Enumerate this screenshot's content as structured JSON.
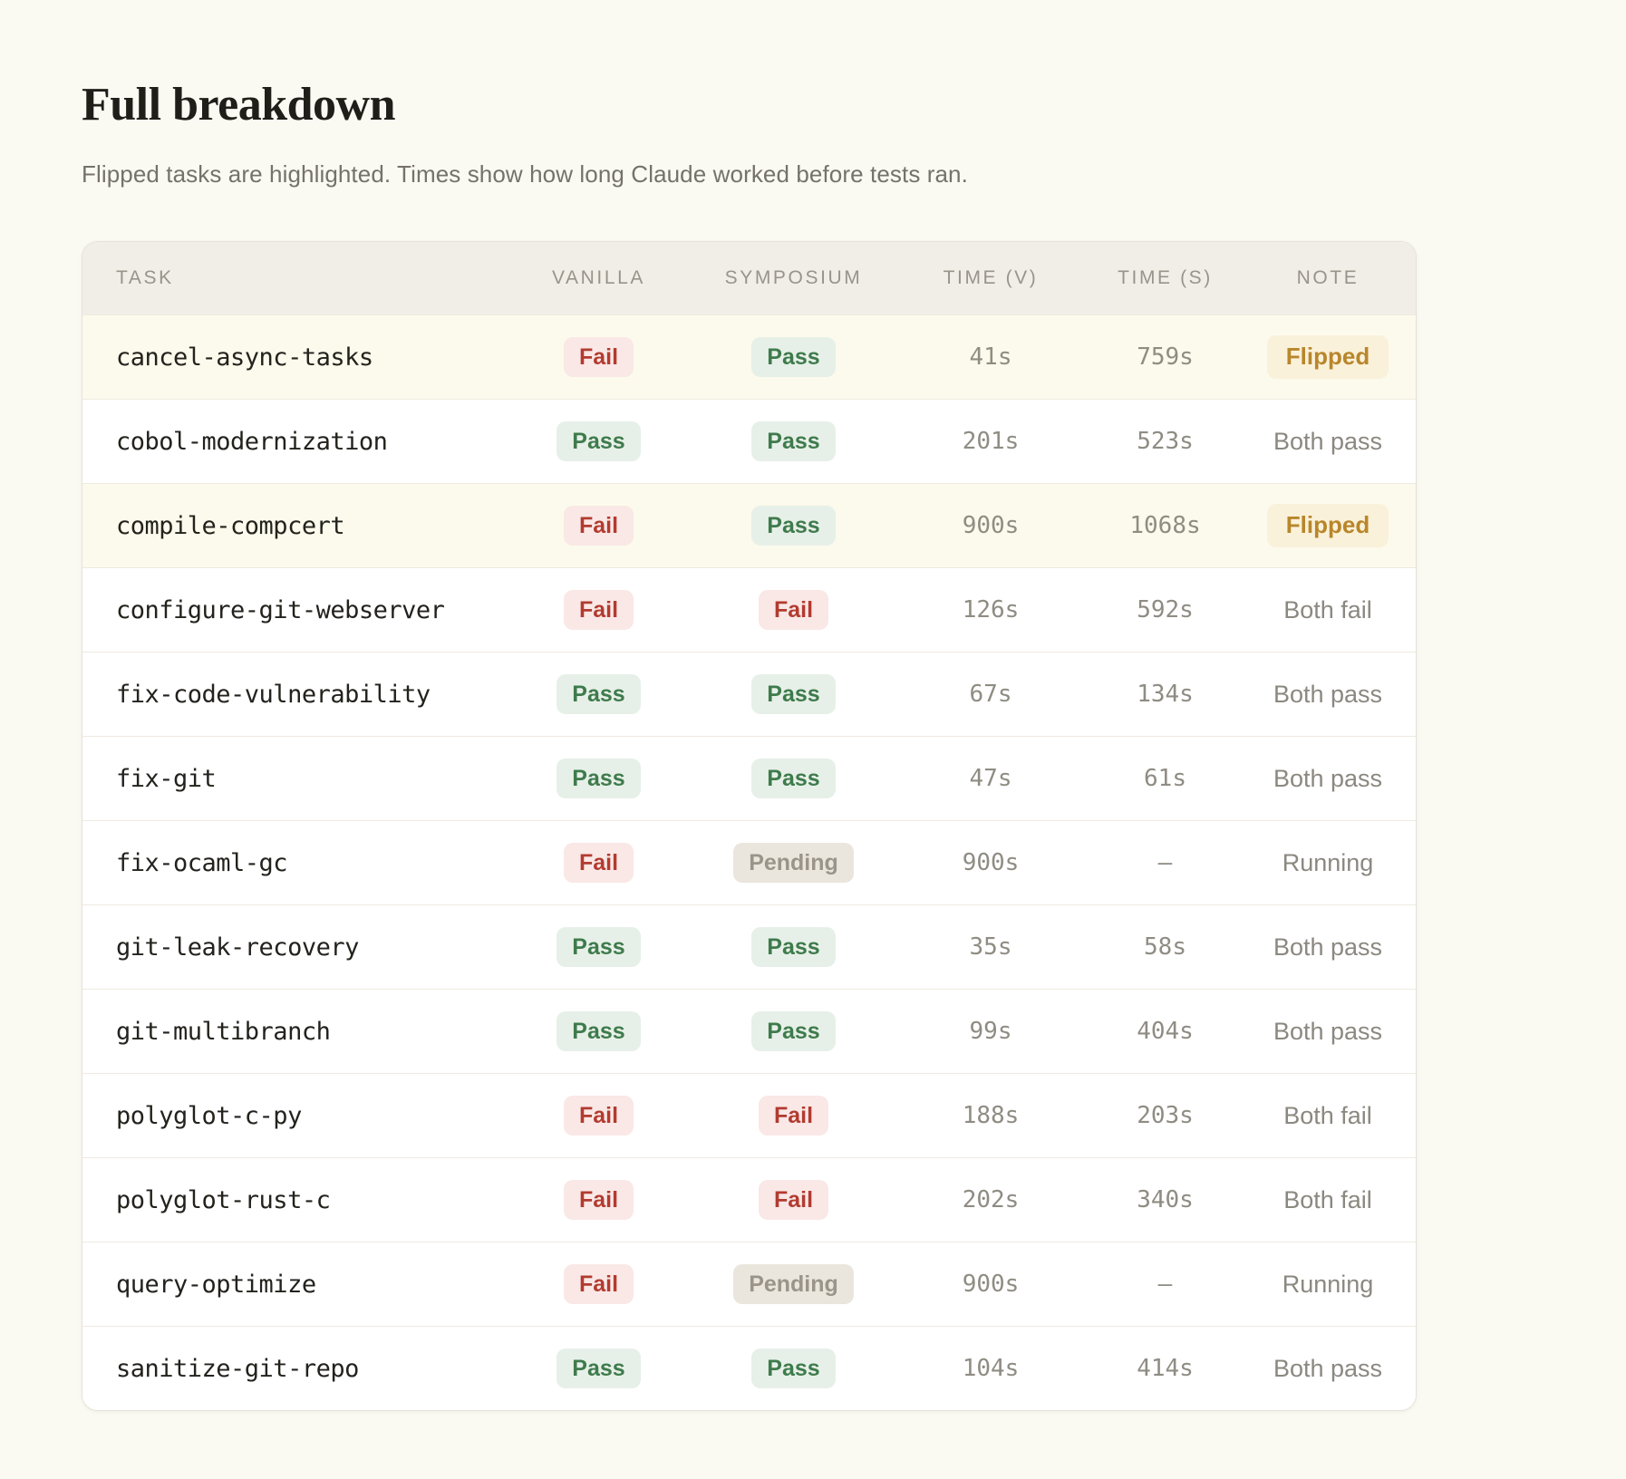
{
  "page": {
    "title": "Full breakdown",
    "subtitle": "Flipped tasks are highlighted. Times show how long Claude worked before tests ran."
  },
  "chart_data": {
    "type": "table",
    "title": "Full breakdown",
    "columns": [
      "TASK",
      "VANILLA",
      "SYMPOSIUM",
      "TIME (V)",
      "TIME (S)",
      "NOTE"
    ],
    "rows": [
      {
        "task": "cancel-async-tasks",
        "vanilla": "Fail",
        "symposium": "Pass",
        "time_v": "41s",
        "time_s": "759s",
        "note": "Flipped",
        "note_style": "flipped-badge",
        "highlighted": true
      },
      {
        "task": "cobol-modernization",
        "vanilla": "Pass",
        "symposium": "Pass",
        "time_v": "201s",
        "time_s": "523s",
        "note": "Both pass",
        "note_style": "plain",
        "highlighted": false
      },
      {
        "task": "compile-compcert",
        "vanilla": "Fail",
        "symposium": "Pass",
        "time_v": "900s",
        "time_s": "1068s",
        "note": "Flipped",
        "note_style": "flipped-badge",
        "highlighted": true
      },
      {
        "task": "configure-git-webserver",
        "vanilla": "Fail",
        "symposium": "Fail",
        "time_v": "126s",
        "time_s": "592s",
        "note": "Both fail",
        "note_style": "plain",
        "highlighted": false
      },
      {
        "task": "fix-code-vulnerability",
        "vanilla": "Pass",
        "symposium": "Pass",
        "time_v": "67s",
        "time_s": "134s",
        "note": "Both pass",
        "note_style": "plain",
        "highlighted": false
      },
      {
        "task": "fix-git",
        "vanilla": "Pass",
        "symposium": "Pass",
        "time_v": "47s",
        "time_s": "61s",
        "note": "Both pass",
        "note_style": "plain",
        "highlighted": false
      },
      {
        "task": "fix-ocaml-gc",
        "vanilla": "Fail",
        "symposium": "Pending",
        "time_v": "900s",
        "time_s": "–",
        "note": "Running",
        "note_style": "plain",
        "highlighted": false
      },
      {
        "task": "git-leak-recovery",
        "vanilla": "Pass",
        "symposium": "Pass",
        "time_v": "35s",
        "time_s": "58s",
        "note": "Both pass",
        "note_style": "plain",
        "highlighted": false
      },
      {
        "task": "git-multibranch",
        "vanilla": "Pass",
        "symposium": "Pass",
        "time_v": "99s",
        "time_s": "404s",
        "note": "Both pass",
        "note_style": "plain",
        "highlighted": false
      },
      {
        "task": "polyglot-c-py",
        "vanilla": "Fail",
        "symposium": "Fail",
        "time_v": "188s",
        "time_s": "203s",
        "note": "Both fail",
        "note_style": "plain",
        "highlighted": false
      },
      {
        "task": "polyglot-rust-c",
        "vanilla": "Fail",
        "symposium": "Fail",
        "time_v": "202s",
        "time_s": "340s",
        "note": "Both fail",
        "note_style": "plain",
        "highlighted": false
      },
      {
        "task": "query-optimize",
        "vanilla": "Fail",
        "symposium": "Pending",
        "time_v": "900s",
        "time_s": "–",
        "note": "Running",
        "note_style": "plain",
        "highlighted": false
      },
      {
        "task": "sanitize-git-repo",
        "vanilla": "Pass",
        "symposium": "Pass",
        "time_v": "104s",
        "time_s": "414s",
        "note": "Both pass",
        "note_style": "plain",
        "highlighted": false
      }
    ]
  },
  "colors": {
    "page_bg": "#FAF9F2",
    "card_bg": "#FFFFFF",
    "header_bg": "#F0EEE7",
    "highlight_row_bg": "#FCFAEC",
    "pass_text": "#3E7B4C",
    "pass_bg": "#E7F0E8",
    "fail_text": "#B23B30",
    "fail_bg": "#F9E8E6",
    "pending_text": "#9A948A",
    "pending_bg": "#EAE6DD",
    "flipped_text": "#B8862B",
    "flipped_bg": "#FAF1DA",
    "muted_text": "#8B8880",
    "task_text": "#23221D"
  }
}
